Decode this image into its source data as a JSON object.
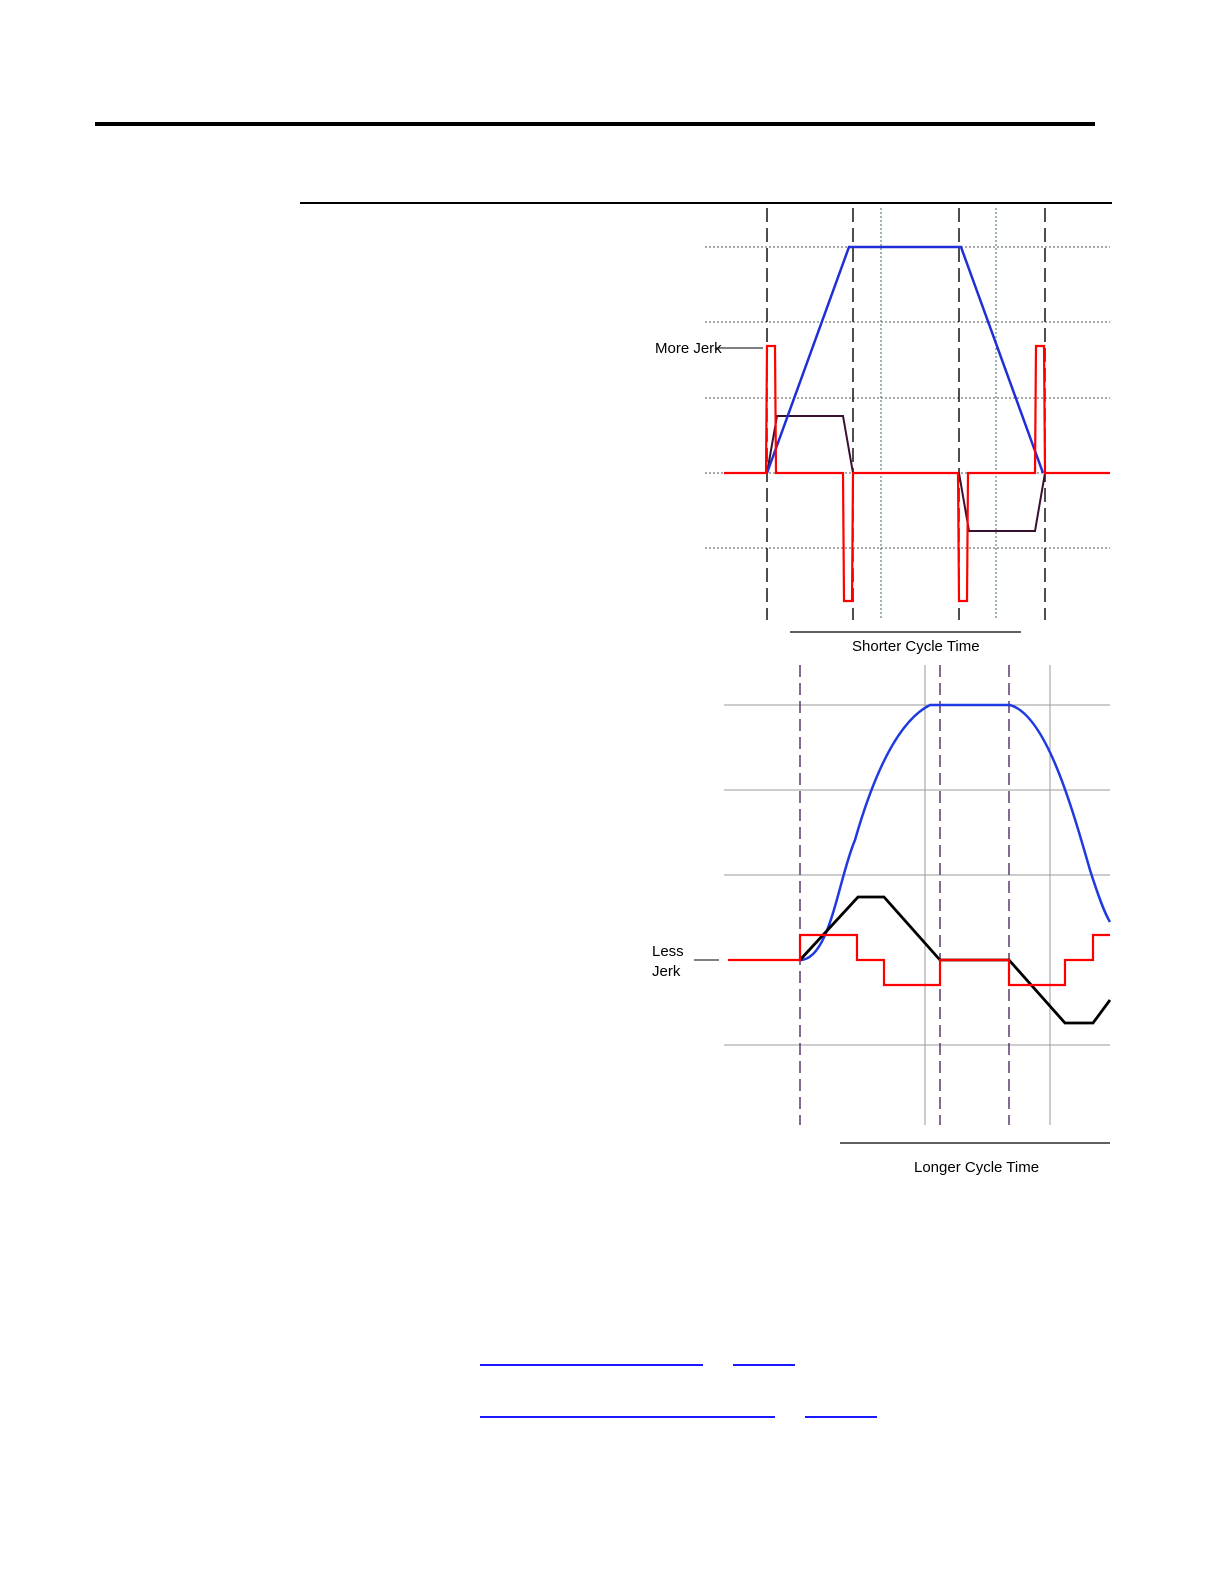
{
  "figure_top": {
    "annotation": "More Jerk",
    "caption": "Shorter Cycle Time",
    "colors": {
      "velocity": "#1f2fd6",
      "jerk": "#ff0000",
      "acceleration": "#3a1030",
      "grid": "#555555"
    }
  },
  "figure_bottom": {
    "annotation_line1": "Less",
    "annotation_line2": "Jerk",
    "caption": "Longer Cycle Time",
    "colors": {
      "velocity": "#1f3ae0",
      "jerk": "#ff0000",
      "acceleration": "#000000",
      "grid": "#9a9a9a",
      "dashed": "#5a3a6a"
    }
  },
  "links": [
    {
      "name": "link-1a"
    },
    {
      "name": "link-1b"
    },
    {
      "name": "link-2a"
    },
    {
      "name": "link-2b"
    }
  ]
}
